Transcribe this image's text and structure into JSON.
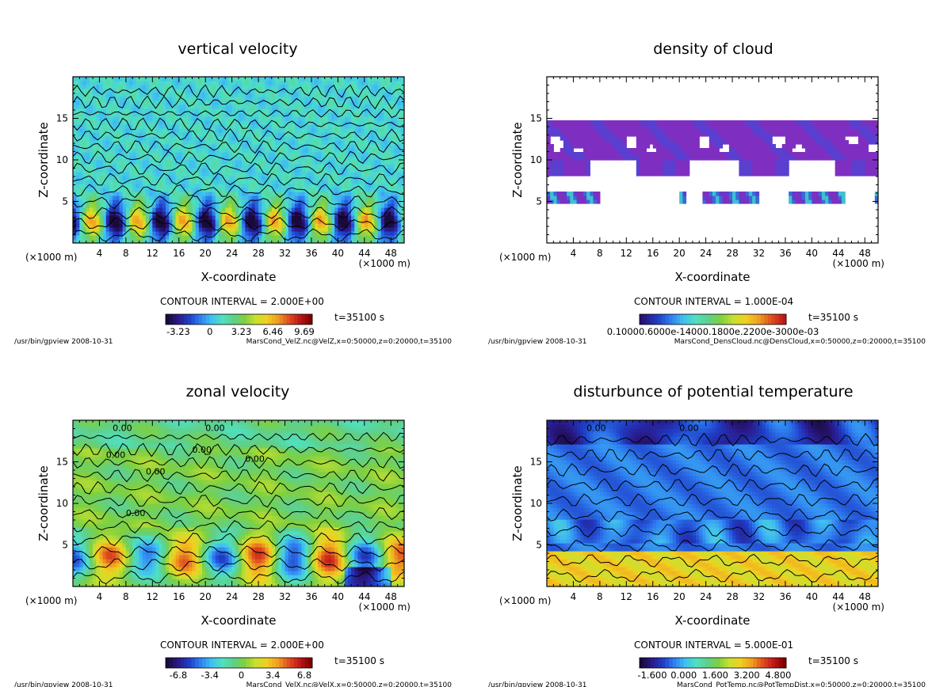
{
  "colors": {
    "rainbow": [
      "#1a0a3a",
      "#2a1a8a",
      "#1f3fc8",
      "#2f7ff0",
      "#40c0f0",
      "#50e0c0",
      "#5fd08a",
      "#7ed040",
      "#c8e030",
      "#f0d020",
      "#f0a020",
      "#e05020",
      "#c01818",
      "#800000"
    ],
    "cloud_purple": "#7f2fc0"
  },
  "chart_data": [
    {
      "type": "heatmap",
      "title": "vertical velocity",
      "xlabel": "X-coordinate",
      "ylabel": "Z-coordinate",
      "x_unit_left": "(×1000 m)",
      "x_unit_right": "(×1000 m)",
      "xlim": [
        0,
        50
      ],
      "ylim": [
        0,
        20
      ],
      "xticks": [
        4,
        8,
        12,
        16,
        20,
        24,
        28,
        32,
        36,
        40,
        44,
        48
      ],
      "yticks": [
        5,
        10,
        15
      ],
      "contour_interval": "CONTOUR INTERVAL = 2.000E+00",
      "time": "t=35100 s",
      "colorbar_ticks": [
        "-3.23",
        "0",
        "3.23",
        "6.46",
        "9.69"
      ],
      "footer_left": "/usr/bin/gpview  2008-10-31",
      "footer_right": "MarsCond_VelZ.nc@VelZ,x=0:50000,z=0:20000,t=35100",
      "contour_labels": []
    },
    {
      "type": "heatmap",
      "title": "density of cloud",
      "xlabel": "X-coordinate",
      "ylabel": "Z-coordinate",
      "x_unit_left": "(×1000 m)",
      "x_unit_right": "(×1000 m)",
      "xlim": [
        0,
        50
      ],
      "ylim": [
        0,
        20
      ],
      "xticks": [
        4,
        8,
        12,
        16,
        20,
        24,
        28,
        32,
        36,
        40,
        44,
        48
      ],
      "yticks": [
        5,
        10,
        15
      ],
      "contour_interval": "CONTOUR INTERVAL = 1.000E-04",
      "time": "t=35100 s",
      "colorbar_ticks": [
        "0.10000.6000e-14000.1800e.2200e-3000e-03"
      ],
      "footer_left": "/usr/bin/gpview  2008-10-31",
      "footer_right": "MarsCond_DensCloud.nc@DensCloud,x=0:50000,z=0:20000,t=35100",
      "contour_labels": []
    },
    {
      "type": "heatmap",
      "title": "zonal velocity",
      "xlabel": "X-coordinate",
      "ylabel": "Z-coordinate",
      "x_unit_left": "(×1000 m)",
      "x_unit_right": "(×1000 m)",
      "xlim": [
        0,
        50
      ],
      "ylim": [
        0,
        20
      ],
      "xticks": [
        4,
        8,
        12,
        16,
        20,
        24,
        28,
        32,
        36,
        40,
        44,
        48
      ],
      "yticks": [
        5,
        10,
        15
      ],
      "contour_interval": "CONTOUR INTERVAL = 2.000E+00",
      "time": "t=35100 s",
      "colorbar_ticks": [
        "-6.8",
        "-3.4",
        "0",
        "3.4",
        "6.8"
      ],
      "footer_left": "/usr/bin/gpview  2008-10-31",
      "footer_right": "MarsCond_VelX.nc@VelX,x=0:50000,z=0:20000,t=35100",
      "contour_labels": [
        "0.00",
        "0.00",
        "0.00",
        "0.00",
        "0.00",
        "0.00",
        "0.00"
      ]
    },
    {
      "type": "heatmap",
      "title": "disturbunce of potential temperature",
      "xlabel": "X-coordinate",
      "ylabel": "Z-coordinate",
      "x_unit_left": "(×1000 m)",
      "x_unit_right": "(×1000 m)",
      "xlim": [
        0,
        50
      ],
      "ylim": [
        0,
        20
      ],
      "xticks": [
        4,
        8,
        12,
        16,
        20,
        24,
        28,
        32,
        36,
        40,
        44,
        48
      ],
      "yticks": [
        5,
        10,
        15
      ],
      "contour_interval": "CONTOUR INTERVAL = 5.000E-01",
      "time": "t=35100 s",
      "colorbar_ticks": [
        "-1.600",
        "0.000",
        "1.600",
        "3.200",
        "4.800"
      ],
      "footer_left": "/usr/bin/gpview  2008-10-31",
      "footer_right": "MarsCond_PotTemp.nc@PotTempDist,x=0:50000,z=0:20000,t=35100",
      "contour_labels": [
        "0.00",
        "0.00"
      ]
    }
  ]
}
